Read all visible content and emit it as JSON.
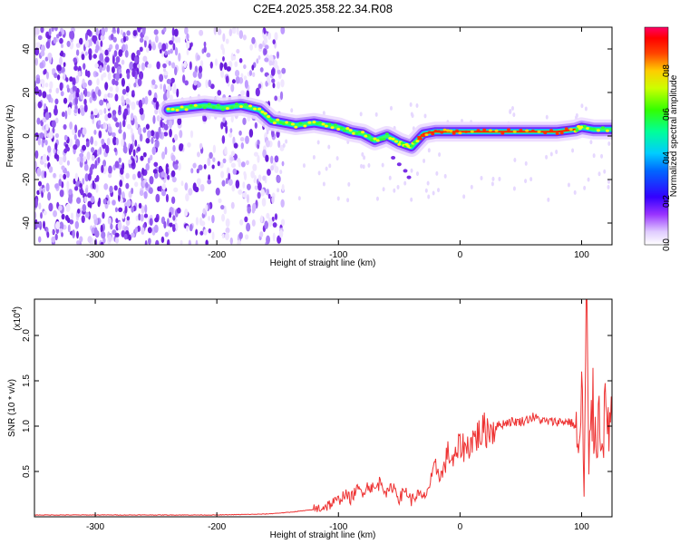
{
  "figure": {
    "title": "C2E4.2025.358.22.34.R08"
  },
  "colorbar": {
    "label": "Normalized spectral amplitude",
    "ticks": [
      0.0,
      0.2,
      0.4,
      0.6,
      0.8
    ],
    "tick_labels": [
      "0.0",
      "0.2",
      "0.4",
      "0.6",
      "0.8"
    ],
    "stops": [
      "#e8dcff",
      "#8a2be2",
      "#3300ff",
      "#00ccff",
      "#00ff66",
      "#ffff00",
      "#ff8800",
      "#ff0000",
      "#ff0066"
    ]
  },
  "chart_data": [
    {
      "type": "heatmap",
      "name": "spectrogram",
      "xlabel": "Height of straight line (km)",
      "ylabel": "Frequency (Hz)",
      "xlim": [
        -350,
        125
      ],
      "ylim": [
        -50,
        50
      ],
      "xticks": [
        -300,
        -200,
        -100,
        0,
        100
      ],
      "xtick_labels": [
        "-300",
        "-200",
        "-100",
        "0",
        "100"
      ],
      "yticks": [
        -40,
        -20,
        0,
        20,
        40
      ],
      "ytick_labels": [
        "-40",
        "-20",
        "0",
        "20",
        "40"
      ],
      "ridge": {
        "x": [
          -240,
          -225,
          -210,
          -195,
          -180,
          -165,
          -155,
          -145,
          -135,
          -120,
          -110,
          -100,
          -90,
          -80,
          -70,
          -60,
          -50,
          -45,
          -40,
          -35,
          -30,
          -20,
          -10,
          0,
          20,
          40,
          60,
          80,
          95,
          100,
          110,
          125
        ],
        "y": [
          12,
          13,
          14,
          13,
          14,
          12,
          7,
          6,
          5,
          6,
          5,
          4,
          2,
          1,
          -2,
          0,
          -3,
          -4,
          -5,
          -2,
          1,
          2,
          2,
          2,
          2,
          2,
          2,
          2,
          3,
          4,
          3,
          3
        ]
      }
    },
    {
      "type": "line",
      "name": "snr",
      "xlabel": "Height of straight line (km)",
      "ylabel": "SNR (10 * v/v)",
      "yscale_label": "(x10",
      "yscale_exp": "4",
      "xlim": [
        -350,
        125
      ],
      "ylim": [
        0,
        2.4
      ],
      "xticks": [
        -300,
        -200,
        -100,
        0,
        100
      ],
      "xtick_labels": [
        "-300",
        "-200",
        "-100",
        "0",
        "100"
      ],
      "yticks": [
        0.5,
        1.0,
        1.5,
        2.0
      ],
      "ytick_labels": [
        "0.5",
        "1.0",
        "1.5",
        "2.0"
      ],
      "color": "#ee3333",
      "series": {
        "x": [
          -350,
          -300,
          -250,
          -200,
          -160,
          -140,
          -120,
          -110,
          -100,
          -95,
          -90,
          -85,
          -80,
          -75,
          -70,
          -65,
          -60,
          -55,
          -50,
          -45,
          -40,
          -35,
          -30,
          -25,
          -20,
          -15,
          -10,
          -5,
          0,
          5,
          10,
          15,
          20,
          30,
          40,
          50,
          60,
          70,
          80,
          90,
          95,
          98,
          100,
          102,
          104,
          106,
          108,
          110,
          115,
          125
        ],
        "y": [
          0.02,
          0.02,
          0.02,
          0.02,
          0.03,
          0.05,
          0.08,
          0.12,
          0.18,
          0.25,
          0.2,
          0.3,
          0.28,
          0.35,
          0.3,
          0.4,
          0.25,
          0.35,
          0.2,
          0.3,
          0.18,
          0.25,
          0.2,
          0.35,
          0.55,
          0.45,
          0.7,
          0.6,
          0.8,
          0.75,
          0.85,
          0.9,
          0.95,
          1.0,
          1.05,
          1.05,
          1.1,
          1.05,
          1.05,
          1.05,
          1.0,
          0.6,
          1.6,
          0.2,
          2.3,
          0.4,
          1.4,
          1.0,
          1.05,
          1.05
        ]
      }
    }
  ]
}
